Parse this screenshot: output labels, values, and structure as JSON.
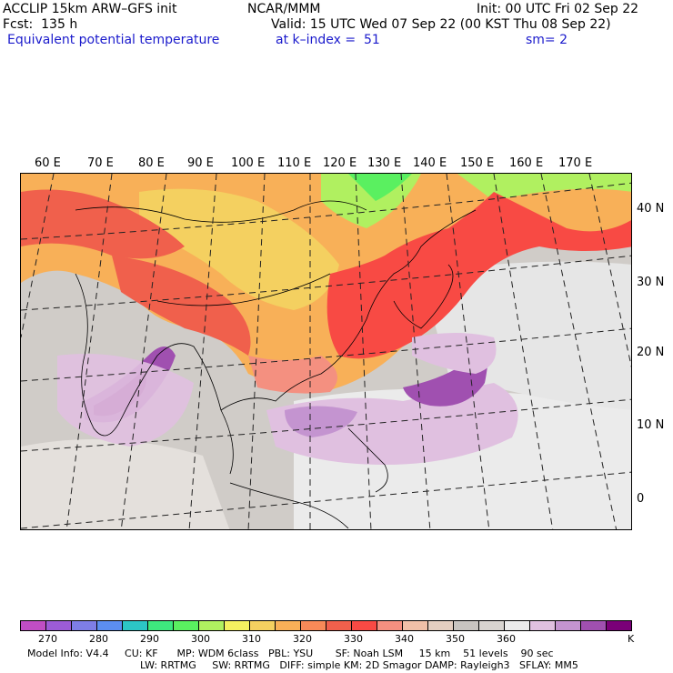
{
  "header": {
    "model_line": "ACCLIP 15km ARW–GFS init",
    "center": "NCAR/MMM",
    "init": "Init: 00 UTC Fri 02 Sep 22",
    "forecast": "Fcst:  135 h",
    "valid": "Valid: 15 UTC Wed 07 Sep 22 (00 KST Thu 08 Sep 22)",
    "field_name": "Equivalent potential temperature",
    "level": "at k–index =  51",
    "smoothing": "sm= 2"
  },
  "map": {
    "lon_labels": [
      "60 E",
      "70 E",
      "80 E",
      "90 E",
      "100 E",
      "110 E",
      "120 E",
      "130 E",
      "140 E",
      "150 E",
      "160 E",
      "170 E"
    ],
    "lat_labels": [
      "40 N",
      "30 N",
      "20 N",
      "10 N",
      "0"
    ]
  },
  "colorbar": {
    "colors": [
      "#c04ec4",
      "#9c5cd6",
      "#7e7ee6",
      "#5c8ef0",
      "#2cc6c6",
      "#3ee87e",
      "#5af060",
      "#b0f060",
      "#f4f060",
      "#f4d060",
      "#f8b058",
      "#f88a58",
      "#f0604c",
      "#f84a44",
      "#f49080",
      "#f0c0a8",
      "#e4cec0",
      "#c8c4c0",
      "#d8d4d0",
      "#ececec",
      "#e0c0e0",
      "#c494d0",
      "#a050b0",
      "#7a0078"
    ],
    "tick_labels": [
      "270",
      "280",
      "290",
      "300",
      "310",
      "320",
      "330",
      "340",
      "350",
      "360",
      "K"
    ]
  },
  "footer": {
    "line1": "Model Info: V4.4     CU: KF      MP: WDM 6class   PBL: YSU       SF: Noah LSM     15 km    51 levels    90 sec",
    "line2": "LW: RRTMG     SW: RRTMG   DIFF: simple KM: 2D Smagor DAMP: Rayleigh3   SFLAY: MM5"
  }
}
